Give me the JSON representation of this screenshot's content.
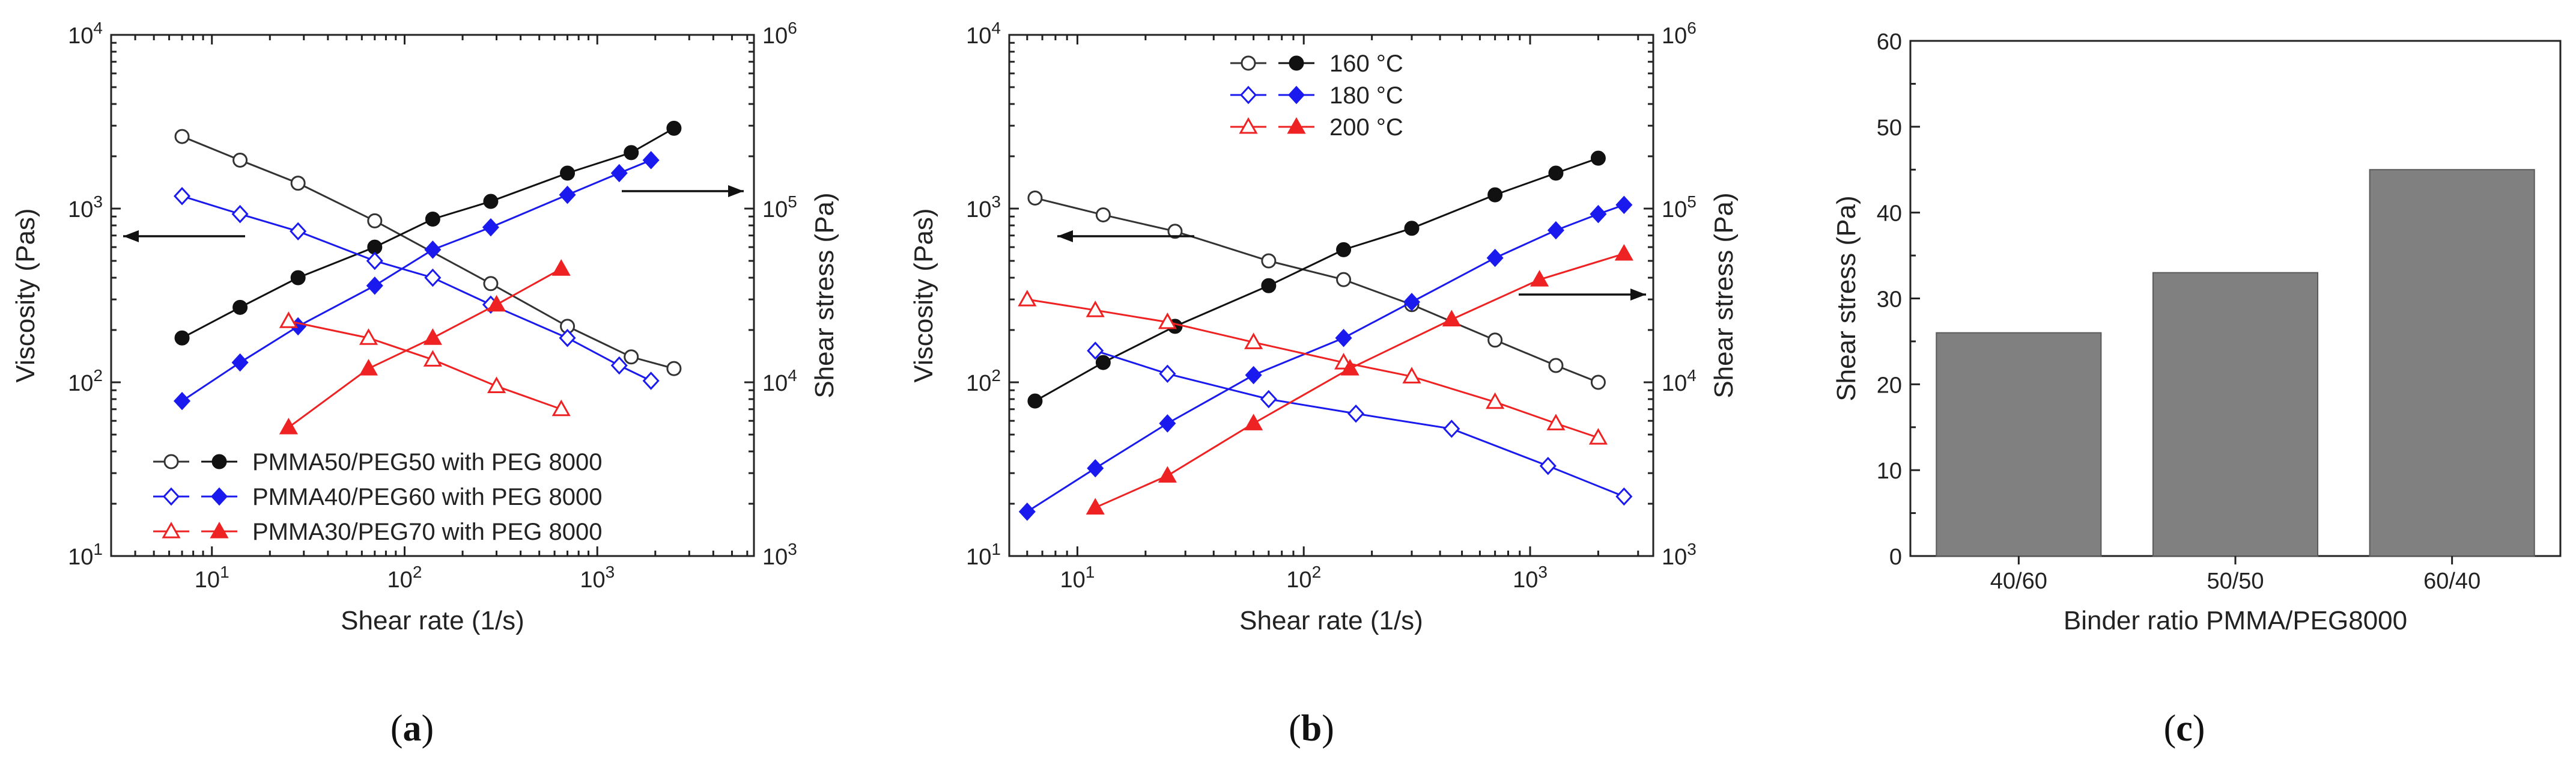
{
  "captions": {
    "a": "a",
    "b": "b",
    "c": "c"
  },
  "chart_data": [
    {
      "type": "line",
      "panel": "a",
      "xlabel": "Shear rate (1/s)",
      "ylabel": "Viscosity (Pas)",
      "y2label": "Shear stress (Pa)",
      "xscale": "log",
      "yscale": "log",
      "y2scale": "log",
      "xlim": [
        3,
        6500
      ],
      "ylim": [
        10,
        10000
      ],
      "y2lim": [
        1000,
        1000000
      ],
      "xticks": [
        {
          "v": 10,
          "b": "10",
          "e": "1"
        },
        {
          "v": 100,
          "b": "10",
          "e": "2"
        },
        {
          "v": 1000,
          "b": "10",
          "e": "3"
        }
      ],
      "yticks": [
        {
          "v": 10,
          "b": "10",
          "e": "1"
        },
        {
          "v": 100,
          "b": "10",
          "e": "2"
        },
        {
          "v": 1000,
          "b": "10",
          "e": "3"
        },
        {
          "v": 10000,
          "b": "10",
          "e": "4"
        }
      ],
      "y2ticks": [
        {
          "v": 1000,
          "b": "10",
          "e": "3"
        },
        {
          "v": 10000,
          "b": "10",
          "e": "4"
        },
        {
          "v": 100000,
          "b": "10",
          "e": "5"
        },
        {
          "v": 1000000,
          "b": "10",
          "e": "6"
        }
      ],
      "legend_position": "bottom-left",
      "legend_style": "paired",
      "series": [
        {
          "name": "PMMA50/PEG50 with PEG 8000",
          "color": "#333333",
          "marker": "circle",
          "fill": false,
          "axis": "left",
          "x": [
            7,
            14,
            28,
            70,
            280,
            700,
            1500,
            2500
          ],
          "y": [
            2600,
            1900,
            1400,
            850,
            370,
            210,
            140,
            120
          ]
        },
        {
          "name": "PMMA50/PEG50 with PEG 8000",
          "color": "#111111",
          "marker": "circle",
          "fill": true,
          "axis": "right",
          "x": [
            7,
            14,
            28,
            70,
            140,
            280,
            700,
            1500,
            2500
          ],
          "y": [
            18000,
            27000,
            40000,
            60000,
            87000,
            110000,
            160000,
            210000,
            290000
          ]
        },
        {
          "name": "PMMA40/PEG60 with PEG 8000",
          "color": "#1a1aee",
          "marker": "diamond",
          "fill": false,
          "axis": "left",
          "x": [
            7,
            14,
            28,
            70,
            140,
            280,
            700,
            1300,
            1900
          ],
          "y": [
            1180,
            930,
            740,
            500,
            400,
            280,
            180,
            125,
            102
          ]
        },
        {
          "name": "PMMA40/PEG60 with PEG 8000",
          "color": "#1a1aee",
          "marker": "diamond",
          "fill": true,
          "axis": "right",
          "x": [
            7,
            14,
            28,
            70,
            140,
            280,
            700,
            1300,
            1900
          ],
          "y": [
            7800,
            13000,
            21000,
            36000,
            58000,
            78000,
            120000,
            160000,
            190000
          ]
        },
        {
          "name": "PMMA30/PEG70 with PEG 8000",
          "color": "#ee2222",
          "marker": "triangle",
          "fill": false,
          "axis": "left",
          "x": [
            25,
            65,
            140,
            300,
            650
          ],
          "y": [
            225,
            180,
            135,
            95,
            70
          ]
        },
        {
          "name": "PMMA30/PEG70 with PEG 8000",
          "color": "#ee2222",
          "marker": "triangle",
          "fill": true,
          "axis": "right",
          "x": [
            25,
            65,
            140,
            300,
            650
          ],
          "y": [
            5500,
            12000,
            18000,
            28000,
            45000
          ]
        }
      ],
      "arrows": [
        {
          "dir": "left"
        },
        {
          "dir": "right"
        }
      ]
    },
    {
      "type": "line",
      "panel": "b",
      "xlabel": "Shear rate (1/s)",
      "ylabel": "Viscosity (Pas)",
      "y2label": "Shear stress (Pa)",
      "xscale": "log",
      "yscale": "log",
      "y2scale": "log",
      "xlim": [
        5,
        3500
      ],
      "ylim": [
        10,
        10000
      ],
      "y2lim": [
        1000,
        1000000
      ],
      "xticks": [
        {
          "v": 10,
          "b": "10",
          "e": "1"
        },
        {
          "v": 100,
          "b": "10",
          "e": "2"
        },
        {
          "v": 1000,
          "b": "10",
          "e": "3"
        }
      ],
      "yticks": [
        {
          "v": 10,
          "b": "10",
          "e": "1"
        },
        {
          "v": 100,
          "b": "10",
          "e": "2"
        },
        {
          "v": 1000,
          "b": "10",
          "e": "3"
        },
        {
          "v": 10000,
          "b": "10",
          "e": "4"
        }
      ],
      "y2ticks": [
        {
          "v": 1000,
          "b": "10",
          "e": "3"
        },
        {
          "v": 10000,
          "b": "10",
          "e": "4"
        },
        {
          "v": 100000,
          "b": "10",
          "e": "5"
        },
        {
          "v": 1000000,
          "b": "10",
          "e": "6"
        }
      ],
      "legend_position": "top-center",
      "legend_style": "paired",
      "series": [
        {
          "name": "160 °C",
          "color": "#333333",
          "marker": "circle",
          "fill": false,
          "axis": "left",
          "x": [
            6.5,
            13,
            27,
            70,
            150,
            300,
            700,
            1300,
            2000
          ],
          "y": [
            1150,
            920,
            740,
            500,
            390,
            280,
            175,
            125,
            100
          ]
        },
        {
          "name": "160 °C",
          "color": "#111111",
          "marker": "circle",
          "fill": true,
          "axis": "right",
          "x": [
            6.5,
            13,
            27,
            70,
            150,
            300,
            700,
            1300,
            2000
          ],
          "y": [
            7800,
            13000,
            21000,
            36000,
            58000,
            77000,
            120000,
            160000,
            195000
          ]
        },
        {
          "name": "180 °C",
          "color": "#1a1aee",
          "marker": "diamond",
          "fill": false,
          "axis": "left",
          "x": [
            12,
            25,
            70,
            170,
            450,
            1200,
            2600
          ],
          "y": [
            152,
            112,
            80,
            66,
            54,
            33,
            22
          ]
        },
        {
          "name": "180 °C",
          "color": "#1a1aee",
          "marker": "diamond",
          "fill": true,
          "axis": "right",
          "x": [
            6,
            12,
            25,
            60,
            150,
            300,
            700,
            1300,
            2000,
            2600
          ],
          "y": [
            1800,
            3200,
            5800,
            11000,
            18000,
            29000,
            52000,
            75000,
            93000,
            105000
          ]
        },
        {
          "name": "200 °C",
          "color": "#ee2222",
          "marker": "triangle",
          "fill": false,
          "axis": "left",
          "x": [
            6,
            12,
            25,
            60,
            150,
            300,
            700,
            1300,
            2000
          ],
          "y": [
            300,
            260,
            222,
            170,
            130,
            108,
            77,
            58,
            48
          ]
        },
        {
          "name": "200 °C",
          "color": "#ee2222",
          "marker": "triangle",
          "fill": true,
          "axis": "right",
          "x": [
            12,
            25,
            60,
            160,
            450,
            1100,
            2600
          ],
          "y": [
            1900,
            2900,
            5800,
            12000,
            23000,
            39000,
            55000
          ]
        }
      ],
      "arrows": [
        {
          "dir": "left"
        },
        {
          "dir": "right"
        }
      ]
    },
    {
      "type": "bar",
      "panel": "c",
      "xlabel": "Binder ratio PMMA/PEG8000",
      "ylabel": "Shear stress (Pa)",
      "categories": [
        "40/60",
        "50/50",
        "60/40"
      ],
      "values": [
        26,
        33,
        45
      ],
      "ylim": [
        0,
        60
      ],
      "yticks": [
        0,
        10,
        20,
        30,
        40,
        50,
        60
      ],
      "color": "#808080"
    }
  ]
}
